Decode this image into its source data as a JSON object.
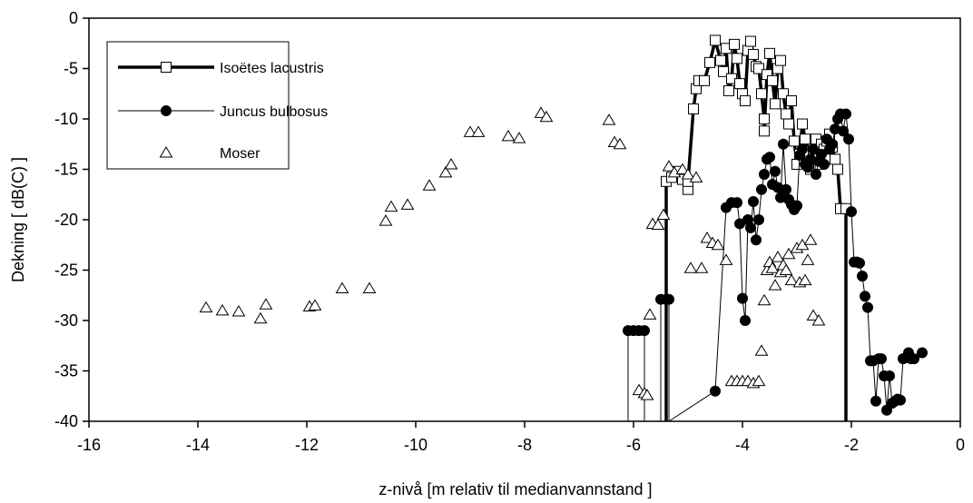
{
  "chart_data": {
    "type": "scatter",
    "xlabel": "z-nivå [m relativ til medianvannstand ]",
    "ylabel": "Dekning [ dB(C) ]",
    "xlim": [
      -16,
      0
    ],
    "ylim": [
      -40,
      0
    ],
    "x_ticks": [
      -16,
      -14,
      -12,
      -10,
      -8,
      -6,
      -4,
      -2,
      0
    ],
    "y_ticks": [
      0,
      -5,
      -10,
      -15,
      -20,
      -25,
      -30,
      -35,
      -40
    ],
    "x_tick_labels": [
      "-16",
      "-14",
      "-12",
      "-10",
      "-8",
      "-6",
      "-4",
      "-2",
      "0"
    ],
    "y_tick_labels": [
      "0",
      "-5",
      "-10",
      "-15",
      "-20",
      "-25",
      "-30",
      "-35",
      "-40"
    ],
    "grid": false,
    "legend_position": "top-left",
    "series": [
      {
        "name": "Isoëtes lacustris",
        "style": "thick-line-open-square",
        "points": [
          [
            -5.4,
            -40
          ],
          [
            -5.4,
            -16.2
          ],
          [
            -5.3,
            -15.8
          ],
          [
            -5.2,
            -15.2
          ],
          [
            -5.1,
            -16.0
          ],
          [
            -5.0,
            -17.0
          ],
          [
            -5.0,
            -16.2
          ],
          [
            -4.9,
            -9.0
          ],
          [
            -4.85,
            -7.0
          ],
          [
            -4.8,
            -6.2
          ],
          [
            -4.7,
            -6.2
          ],
          [
            -4.6,
            -4.4
          ],
          [
            -4.5,
            -2.2
          ],
          [
            -4.4,
            -4.2
          ],
          [
            -4.35,
            -5.3
          ],
          [
            -4.3,
            -3.0
          ],
          [
            -4.25,
            -7.2
          ],
          [
            -4.2,
            -6.0
          ],
          [
            -4.15,
            -2.6
          ],
          [
            -4.1,
            -4.0
          ],
          [
            -4.05,
            -6.5
          ],
          [
            -4.0,
            -7.5
          ],
          [
            -3.95,
            -8.2
          ],
          [
            -3.9,
            -3.2
          ],
          [
            -3.85,
            -2.3
          ],
          [
            -3.8,
            -3.6
          ],
          [
            -3.75,
            -4.8
          ],
          [
            -3.7,
            -5.0
          ],
          [
            -3.65,
            -7.5
          ],
          [
            -3.6,
            -10.0
          ],
          [
            -3.6,
            -11.2
          ],
          [
            -3.55,
            -5.6
          ],
          [
            -3.5,
            -3.5
          ],
          [
            -3.45,
            -6.2
          ],
          [
            -3.4,
            -8.5
          ],
          [
            -3.35,
            -5.0
          ],
          [
            -3.3,
            -4.2
          ],
          [
            -3.25,
            -7.5
          ],
          [
            -3.2,
            -9.5
          ],
          [
            -3.15,
            -10.5
          ],
          [
            -3.1,
            -8.2
          ],
          [
            -3.05,
            -12.2
          ],
          [
            -3.0,
            -14.5
          ],
          [
            -2.95,
            -13.5
          ],
          [
            -2.9,
            -10.5
          ],
          [
            -2.85,
            -12.0
          ],
          [
            -2.8,
            -13.2
          ],
          [
            -2.75,
            -15.0
          ],
          [
            -2.7,
            -13.0
          ],
          [
            -2.65,
            -12.0
          ],
          [
            -2.6,
            -14.5
          ],
          [
            -2.55,
            -12.5
          ],
          [
            -2.5,
            -13.0
          ],
          [
            -2.45,
            -12.2
          ],
          [
            -2.4,
            -11.5
          ],
          [
            -2.35,
            -12.8
          ],
          [
            -2.3,
            -14.0
          ],
          [
            -2.25,
            -15.0
          ],
          [
            -2.2,
            -18.9
          ],
          [
            -2.1,
            -18.9
          ],
          [
            -2.1,
            -40
          ]
        ]
      },
      {
        "name": "Juncus bulbosus",
        "style": "thin-line-filled-circle",
        "points": [
          [
            -6.1,
            -40
          ],
          [
            -6.1,
            -31.0
          ],
          [
            -6.0,
            -31.0
          ],
          [
            -5.9,
            -31.0
          ],
          [
            -5.8,
            -31.0
          ],
          [
            -5.8,
            -40
          ],
          [
            -5.5,
            -40
          ],
          [
            -5.5,
            -27.9
          ],
          [
            -5.4,
            -27.9
          ],
          [
            -5.35,
            -27.9
          ],
          [
            -5.35,
            -40
          ],
          [
            -4.5,
            -37.0
          ],
          [
            -4.3,
            -18.8
          ],
          [
            -4.2,
            -18.3
          ],
          [
            -4.1,
            -18.3
          ],
          [
            -4.05,
            -20.4
          ],
          [
            -4.0,
            -27.8
          ],
          [
            -3.95,
            -30.0
          ],
          [
            -3.9,
            -20.0
          ],
          [
            -3.85,
            -20.8
          ],
          [
            -3.8,
            -18.2
          ],
          [
            -3.75,
            -22.0
          ],
          [
            -3.7,
            -20.0
          ],
          [
            -3.65,
            -17.0
          ],
          [
            -3.6,
            -15.5
          ],
          [
            -3.55,
            -14.0
          ],
          [
            -3.5,
            -13.8
          ],
          [
            -3.45,
            -16.5
          ],
          [
            -3.4,
            -15.2
          ],
          [
            -3.35,
            -16.8
          ],
          [
            -3.3,
            -17.8
          ],
          [
            -3.25,
            -12.5
          ],
          [
            -3.2,
            -17.0
          ],
          [
            -3.15,
            -18.0
          ],
          [
            -3.1,
            -18.5
          ],
          [
            -3.05,
            -19.0
          ],
          [
            -3.0,
            -18.6
          ],
          [
            -2.95,
            -13.6
          ],
          [
            -2.9,
            -13.0
          ],
          [
            -2.85,
            -14.5
          ],
          [
            -2.8,
            -14.8
          ],
          [
            -2.75,
            -14.0
          ],
          [
            -2.7,
            -13.0
          ],
          [
            -2.65,
            -15.5
          ],
          [
            -2.6,
            -14.2
          ],
          [
            -2.55,
            -13.5
          ],
          [
            -2.5,
            -14.5
          ],
          [
            -2.45,
            -12.0
          ],
          [
            -2.4,
            -13.0
          ],
          [
            -2.35,
            -12.5
          ],
          [
            -2.3,
            -11.0
          ],
          [
            -2.25,
            -10.0
          ],
          [
            -2.2,
            -9.5
          ],
          [
            -2.15,
            -11.2
          ],
          [
            -2.1,
            -9.5
          ],
          [
            -2.05,
            -12.0
          ],
          [
            -2.0,
            -19.2
          ],
          [
            -1.95,
            -24.2
          ],
          [
            -1.9,
            -24.2
          ],
          [
            -1.85,
            -24.3
          ],
          [
            -1.8,
            -25.6
          ],
          [
            -1.75,
            -27.6
          ],
          [
            -1.7,
            -28.7
          ],
          [
            -1.65,
            -34.0
          ],
          [
            -1.6,
            -34.0
          ],
          [
            -1.55,
            -38.0
          ],
          [
            -1.5,
            -33.8
          ],
          [
            -1.45,
            -33.8
          ],
          [
            -1.4,
            -35.5
          ],
          [
            -1.35,
            -38.9
          ],
          [
            -1.3,
            -35.5
          ],
          [
            -1.25,
            -38.2
          ],
          [
            -1.2,
            -38.0
          ],
          [
            -1.15,
            -37.8
          ],
          [
            -1.1,
            -37.9
          ],
          [
            -1.05,
            -33.8
          ],
          [
            -1.0,
            -33.7
          ],
          [
            -0.95,
            -33.2
          ],
          [
            -0.9,
            -33.8
          ],
          [
            -0.85,
            -33.8
          ],
          [
            -0.7,
            -33.2
          ]
        ]
      },
      {
        "name": "Moser",
        "style": "open-triangle",
        "points": [
          [
            -13.85,
            -28.7
          ],
          [
            -13.55,
            -29.0
          ],
          [
            -13.25,
            -29.1
          ],
          [
            -12.85,
            -29.8
          ],
          [
            -12.75,
            -28.4
          ],
          [
            -11.95,
            -28.6
          ],
          [
            -11.85,
            -28.5
          ],
          [
            -11.35,
            -26.8
          ],
          [
            -10.85,
            -26.8
          ],
          [
            -10.55,
            -20.1
          ],
          [
            -10.45,
            -18.7
          ],
          [
            -10.15,
            -18.5
          ],
          [
            -9.75,
            -16.6
          ],
          [
            -9.45,
            -15.3
          ],
          [
            -9.35,
            -14.5
          ],
          [
            -9.0,
            -11.3
          ],
          [
            -8.85,
            -11.3
          ],
          [
            -8.3,
            -11.7
          ],
          [
            -8.1,
            -11.9
          ],
          [
            -7.7,
            -9.4
          ],
          [
            -7.6,
            -9.8
          ],
          [
            -6.45,
            -10.1
          ],
          [
            -6.35,
            -12.3
          ],
          [
            -6.25,
            -12.5
          ],
          [
            -5.9,
            -36.9
          ],
          [
            -5.8,
            -37.2
          ],
          [
            -5.75,
            -37.4
          ],
          [
            -5.7,
            -29.4
          ],
          [
            -5.65,
            -20.4
          ],
          [
            -5.55,
            -20.5
          ],
          [
            -5.45,
            -19.5
          ],
          [
            -5.35,
            -14.7
          ],
          [
            -5.25,
            -15.3
          ],
          [
            -5.1,
            -15.0
          ],
          [
            -5.0,
            -15.5
          ],
          [
            -4.95,
            -24.8
          ],
          [
            -4.85,
            -15.8
          ],
          [
            -4.75,
            -24.8
          ],
          [
            -4.65,
            -21.8
          ],
          [
            -4.55,
            -22.3
          ],
          [
            -4.45,
            -22.5
          ],
          [
            -4.3,
            -24.0
          ],
          [
            -4.2,
            -36.0
          ],
          [
            -4.1,
            -36.0
          ],
          [
            -4.0,
            -36.0
          ],
          [
            -3.9,
            -36.0
          ],
          [
            -3.8,
            -36.2
          ],
          [
            -3.7,
            -36.0
          ],
          [
            -3.65,
            -33.0
          ],
          [
            -3.6,
            -28.0
          ],
          [
            -3.55,
            -25.0
          ],
          [
            -3.5,
            -24.2
          ],
          [
            -3.45,
            -24.8
          ],
          [
            -3.4,
            -26.5
          ],
          [
            -3.35,
            -23.7
          ],
          [
            -3.3,
            -25.2
          ],
          [
            -3.25,
            -24.5
          ],
          [
            -3.2,
            -25.0
          ],
          [
            -3.15,
            -23.4
          ],
          [
            -3.1,
            -26.0
          ],
          [
            -3.0,
            -22.8
          ],
          [
            -2.95,
            -26.2
          ],
          [
            -2.9,
            -22.5
          ],
          [
            -2.85,
            -26.0
          ],
          [
            -2.8,
            -24.0
          ],
          [
            -2.75,
            -22.0
          ],
          [
            -2.7,
            -29.5
          ],
          [
            -2.6,
            -30.0
          ]
        ]
      }
    ]
  }
}
